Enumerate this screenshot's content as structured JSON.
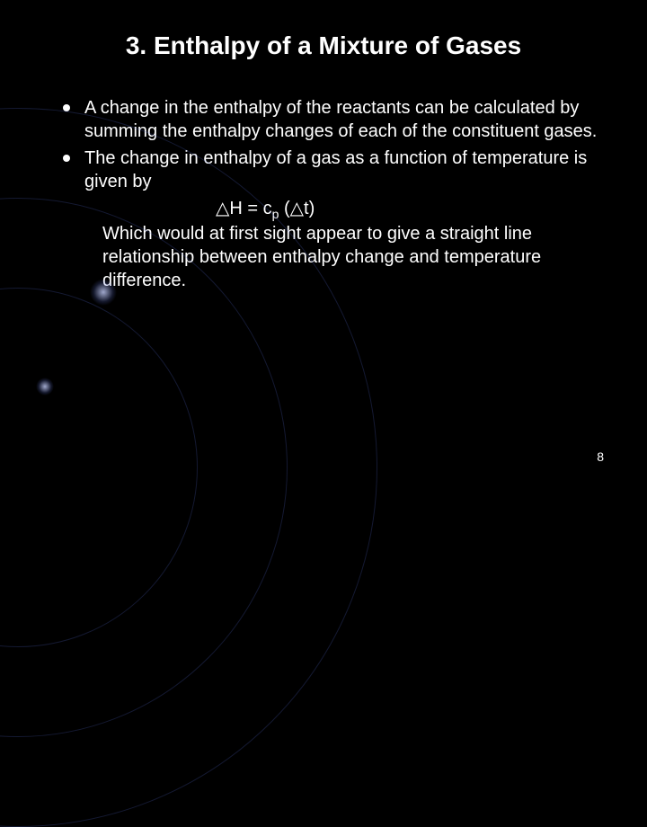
{
  "title": "3. Enthalpy of a Mixture of Gases",
  "bullets": [
    "A change in the enthalpy of the reactants can be calculated by summing the enthalpy changes of each of the constituent gases.",
    "The change in enthalpy of a gas as a function of temperature is given by"
  ],
  "equation": {
    "prefix": "△H = c",
    "subscript": "p",
    "suffix": " (△t)"
  },
  "continuation": "Which would at first sight appear to give a straight line relationship between enthalpy change and temperature difference.",
  "page_number": "8",
  "styling": {
    "background_color": "#000000",
    "text_color": "#ffffff",
    "title_fontsize": 28,
    "body_fontsize": 20,
    "bullet_color": "#ffffff",
    "orbit_color": "rgba(80,100,200,0.25)",
    "slide_width": 720,
    "slide_height": 540
  }
}
